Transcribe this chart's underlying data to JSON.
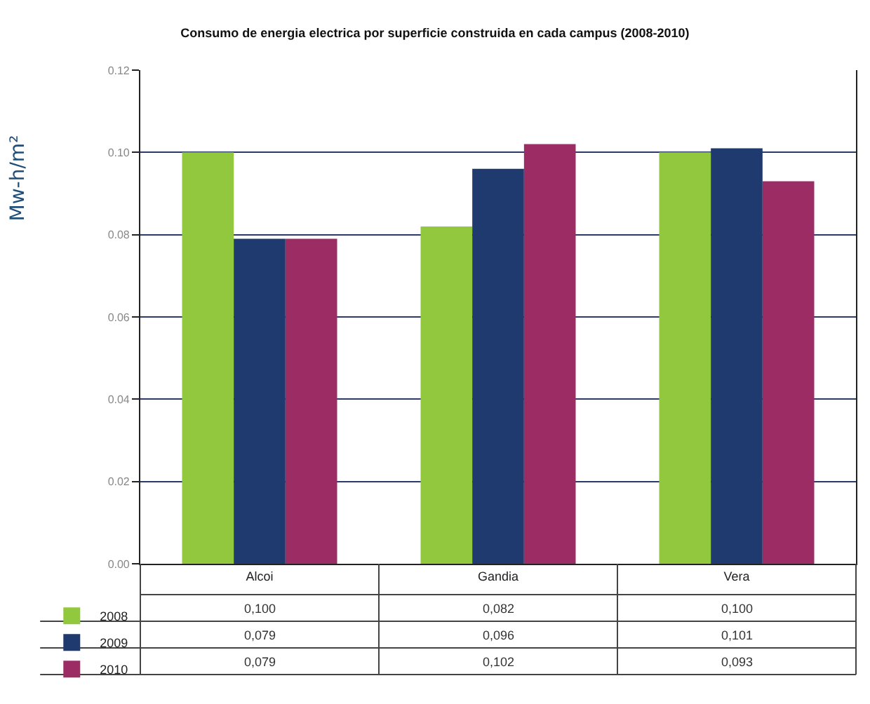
{
  "chart_data": {
    "type": "bar",
    "title": "Consumo de energia electrica por superficie construida en cada campus (2008-2010)",
    "ylabel": "Mw-h/m²",
    "categories": [
      "Alcoi",
      "Gandia",
      "Vera"
    ],
    "series": [
      {
        "name": "2008",
        "color": "#92c83e",
        "values": [
          0.1,
          0.082,
          0.1
        ],
        "value_labels": [
          "0,100",
          "0,082",
          "0,100"
        ]
      },
      {
        "name": "2009",
        "color": "#1f3a6e",
        "values": [
          0.079,
          0.096,
          0.101
        ],
        "value_labels": [
          "0,079",
          "0,096",
          "0,101"
        ]
      },
      {
        "name": "2010",
        "color": "#9b2d64",
        "values": [
          0.079,
          0.102,
          0.093
        ],
        "value_labels": [
          "0,079",
          "0,102",
          "0,093"
        ]
      }
    ],
    "ylim": [
      0,
      0.12
    ],
    "yticks": [
      {
        "value": 0,
        "label": "0.00"
      },
      {
        "value": 0.02,
        "label": "0.02"
      },
      {
        "value": 0.04,
        "label": "0.04"
      },
      {
        "value": 0.06,
        "label": "0.06"
      },
      {
        "value": 0.08,
        "label": "0.08"
      },
      {
        "value": 0.1,
        "label": "0.10"
      },
      {
        "value": 0.12,
        "label": "0.12"
      }
    ],
    "grid": "y",
    "legend": "bottom left"
  }
}
